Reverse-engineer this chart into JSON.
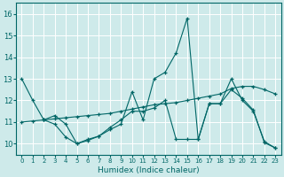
{
  "xlabel": "Humidex (Indice chaleur)",
  "xlim": [
    -0.5,
    23.5
  ],
  "ylim": [
    9.5,
    16.5
  ],
  "yticks": [
    10,
    11,
    12,
    13,
    14,
    15,
    16
  ],
  "xticks": [
    0,
    1,
    2,
    3,
    4,
    5,
    6,
    7,
    8,
    9,
    10,
    11,
    12,
    13,
    14,
    15,
    16,
    17,
    18,
    19,
    20,
    21,
    22,
    23
  ],
  "bg_color": "#ceeaea",
  "line_color": "#006666",
  "grid_color": "#ffffff",
  "lines": [
    {
      "x": [
        0,
        1,
        2,
        3,
        4,
        5,
        6,
        7,
        8,
        9,
        10,
        11,
        12,
        13,
        14,
        15,
        16,
        17,
        18,
        19,
        20,
        21,
        22,
        23
      ],
      "y": [
        13.0,
        12.0,
        11.1,
        10.9,
        10.3,
        10.0,
        10.2,
        10.35,
        10.65,
        10.9,
        12.4,
        11.1,
        13.0,
        13.3,
        14.2,
        15.8,
        10.2,
        11.85,
        11.85,
        13.0,
        12.0,
        11.5,
        10.1,
        9.8
      ]
    },
    {
      "x": [
        0,
        1,
        2,
        3,
        4,
        5,
        6,
        7,
        8,
        9,
        10,
        11,
        12,
        13,
        14,
        15,
        16,
        17,
        18,
        19,
        20,
        21,
        22,
        23
      ],
      "y": [
        11.0,
        11.05,
        11.1,
        11.15,
        11.2,
        11.25,
        11.3,
        11.35,
        11.4,
        11.5,
        11.6,
        11.7,
        11.8,
        11.85,
        11.9,
        12.0,
        12.1,
        12.2,
        12.3,
        12.55,
        12.65,
        12.65,
        12.5,
        12.3
      ]
    },
    {
      "x": [
        2,
        3,
        4,
        5,
        6,
        7,
        8,
        9,
        10,
        11,
        12,
        13,
        14,
        15,
        16,
        17,
        18,
        19,
        20,
        21,
        22,
        23
      ],
      "y": [
        11.1,
        11.3,
        10.9,
        10.0,
        10.15,
        10.35,
        10.75,
        11.1,
        11.5,
        11.5,
        11.65,
        12.0,
        10.2,
        10.2,
        10.2,
        11.85,
        11.85,
        12.5,
        12.1,
        11.55,
        10.05,
        9.8
      ]
    }
  ]
}
